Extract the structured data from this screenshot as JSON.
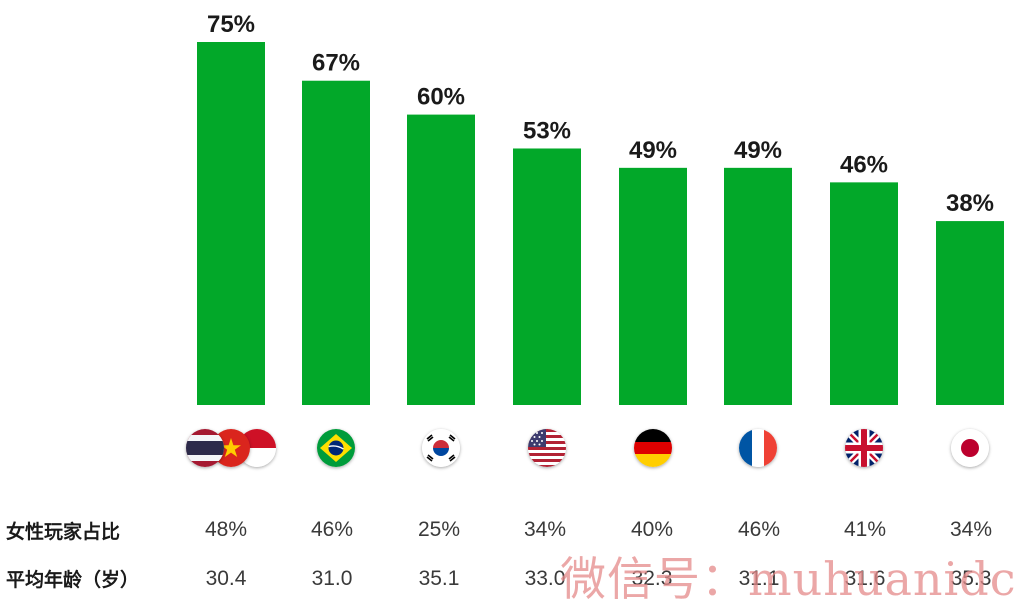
{
  "chart_data": {
    "type": "bar",
    "categories": [
      "Thailand / Vietnam / Indonesia",
      "Brazil",
      "South Korea",
      "USA",
      "Germany",
      "France",
      "UK",
      "Japan"
    ],
    "values": [
      75,
      67,
      60,
      53,
      49,
      49,
      46,
      38
    ],
    "value_labels": [
      "75%",
      "67%",
      "60%",
      "53%",
      "49%",
      "49%",
      "46%",
      "38%"
    ],
    "ylim": [
      0,
      75
    ],
    "grid": false,
    "bar_color": "#02a829"
  },
  "flags": [
    [
      "flag-thailand-icon",
      "flag-vietnam-icon",
      "flag-indonesia-icon"
    ],
    [
      "flag-brazil-icon"
    ],
    [
      "flag-south-korea-icon"
    ],
    [
      "flag-usa-icon"
    ],
    [
      "flag-germany-icon"
    ],
    [
      "flag-france-icon"
    ],
    [
      "flag-uk-icon"
    ],
    [
      "flag-japan-icon"
    ]
  ],
  "table": {
    "female_ratio": {
      "label": "女性玩家占比",
      "values": [
        "48%",
        "46%",
        "25%",
        "34%",
        "40%",
        "46%",
        "41%",
        "34%"
      ]
    },
    "average_age": {
      "label": "平均年龄（岁）",
      "values": [
        "30.4",
        "31.0",
        "35.1",
        "33.0",
        "32.3",
        "31.1",
        "31.6",
        "35.3"
      ]
    }
  },
  "watermark": "微信号：muhuanidc"
}
